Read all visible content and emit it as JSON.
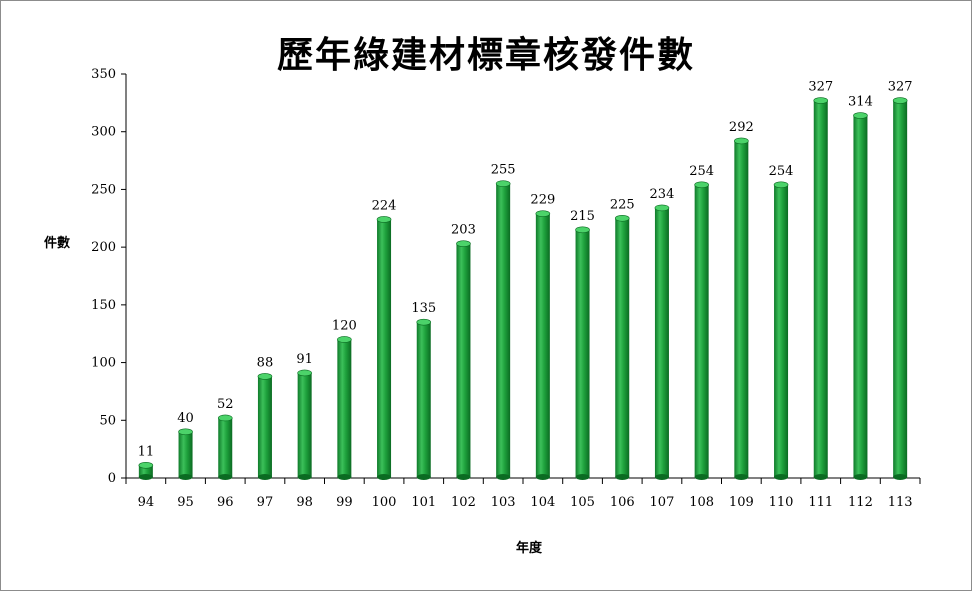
{
  "chart_data": {
    "type": "bar",
    "title": "歷年綠建材標章核發件數",
    "xlabel": "年度",
    "ylabel": "件數",
    "categories": [
      "94",
      "95",
      "96",
      "97",
      "98",
      "99",
      "100",
      "101",
      "102",
      "103",
      "104",
      "105",
      "106",
      "107",
      "108",
      "109",
      "110",
      "111",
      "112",
      "113"
    ],
    "values": [
      11,
      40,
      52,
      88,
      91,
      120,
      224,
      135,
      203,
      255,
      229,
      215,
      225,
      234,
      254,
      292,
      254,
      327,
      314,
      327
    ],
    "ylim": [
      0,
      350
    ],
    "yticks": [
      0,
      50,
      100,
      150,
      200,
      250,
      300,
      350
    ],
    "grid": false,
    "legend": "none",
    "bar_color": "#1e9e3a",
    "bar_highlight": "#4cd36a",
    "bar_shadow": "#0b6b22"
  }
}
